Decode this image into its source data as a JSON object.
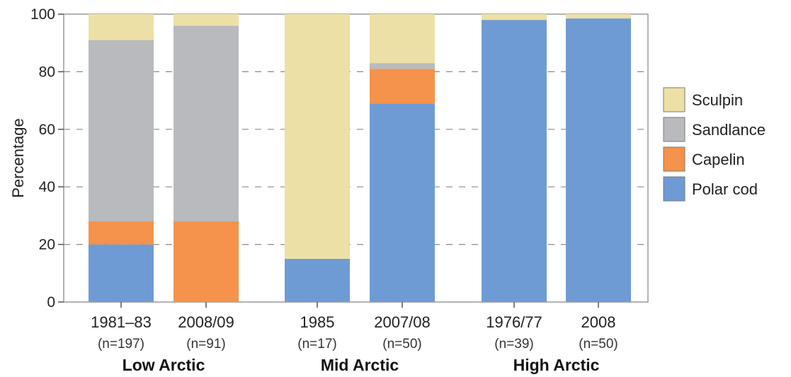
{
  "chart_data": {
    "type": "bar",
    "stacked": true,
    "ylabel": "Percentage",
    "ylim": [
      0,
      100
    ],
    "yticks": [
      0,
      20,
      40,
      60,
      80,
      100
    ],
    "grid": "horizontal dashed",
    "legend_position": "right",
    "categories": [
      "1981–83",
      "2008/09",
      "1985",
      "2007/08",
      "1976/77",
      "2008"
    ],
    "counts": [
      "(n=197)",
      "(n=91)",
      "(n=17)",
      "(n=50)",
      "(n=39)",
      "(n=50)"
    ],
    "groups": [
      {
        "label": "Low Arctic",
        "categories": [
          0,
          1
        ]
      },
      {
        "label": "Mid Arctic",
        "categories": [
          2,
          3
        ]
      },
      {
        "label": "High Arctic",
        "categories": [
          4,
          5
        ]
      }
    ],
    "series": [
      {
        "name": "Polar cod",
        "color": "#6f9bd4",
        "values": [
          20,
          0,
          15,
          69,
          98,
          98.5
        ]
      },
      {
        "name": "Capelin",
        "color": "#f5924b",
        "values": [
          8,
          28,
          0,
          12,
          0,
          0
        ]
      },
      {
        "name": "Sandlance",
        "color": "#b9babd",
        "values": [
          63,
          68,
          0,
          2,
          0,
          0
        ]
      },
      {
        "name": "Sculpin",
        "color": "#ede0a6",
        "values": [
          9,
          4,
          85,
          17,
          2,
          1.5
        ]
      }
    ],
    "legend_order": [
      "Sculpin",
      "Sandlance",
      "Capelin",
      "Polar cod"
    ]
  }
}
